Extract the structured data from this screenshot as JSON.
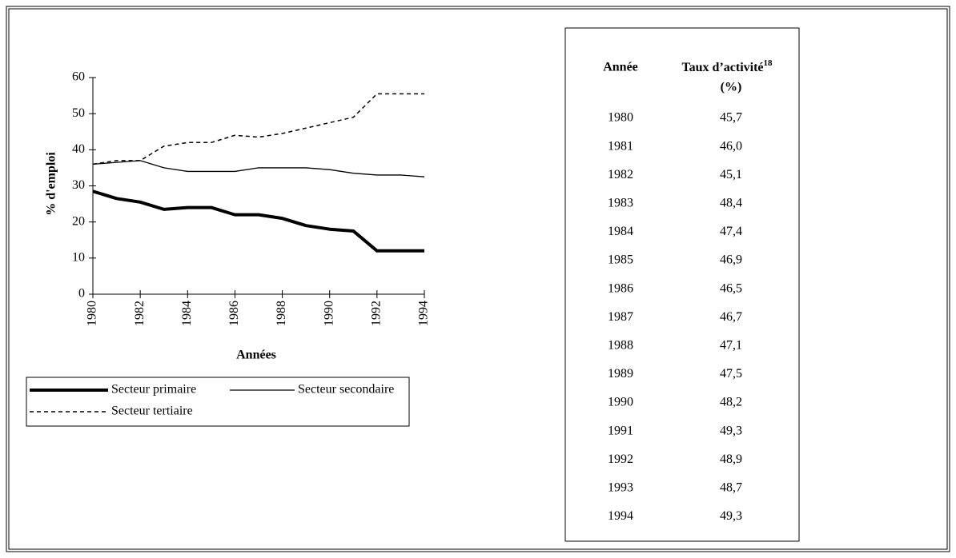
{
  "chart_data": {
    "type": "line",
    "y_label": "% d'emploi",
    "x_label": "Années",
    "x": [
      1980,
      1981,
      1982,
      1983,
      1984,
      1985,
      1986,
      1987,
      1988,
      1989,
      1990,
      1991,
      1992,
      1993,
      1994
    ],
    "xlim": [
      1980,
      1994
    ],
    "xticks": [
      1980,
      1982,
      1984,
      1986,
      1988,
      1990,
      1992,
      1994
    ],
    "ylim": [
      0,
      60
    ],
    "yticks": [
      0,
      10,
      20,
      30,
      40,
      50,
      60
    ],
    "series": [
      {
        "name": "Secteur primaire",
        "color": "#000000",
        "linewidth": 4,
        "linestyle": "solid",
        "values": [
          28.5,
          26.5,
          25.5,
          23.5,
          24,
          24,
          22,
          22,
          21,
          19,
          18,
          17.5,
          12,
          12,
          12
        ]
      },
      {
        "name": "Secteur secondaire",
        "color": "#000000",
        "linewidth": 1.3,
        "linestyle": "solid",
        "values": [
          36,
          36.5,
          37,
          35,
          34,
          34,
          34,
          35,
          35,
          35,
          34.5,
          33.5,
          33,
          33,
          32.5
        ]
      },
      {
        "name": "Secteur tertiaire",
        "color": "#000000",
        "linewidth": 1.5,
        "linestyle": "dashed",
        "values": [
          36,
          37,
          37,
          41,
          42,
          42,
          44,
          43.5,
          44.5,
          46,
          47.5,
          49,
          55.5,
          55.5,
          55.5
        ]
      }
    ]
  },
  "table": {
    "columns": [
      {
        "label": "Année"
      },
      {
        "label": "Taux d’activité",
        "note": "18",
        "unit": "(%)"
      }
    ],
    "rows": [
      [
        "1980",
        "45,7"
      ],
      [
        "1981",
        "46,0"
      ],
      [
        "1982",
        "45,1"
      ],
      [
        "1983",
        "48,4"
      ],
      [
        "1984",
        "47,4"
      ],
      [
        "1985",
        "46,9"
      ],
      [
        "1986",
        "46,5"
      ],
      [
        "1987",
        "46,7"
      ],
      [
        "1988",
        "47,1"
      ],
      [
        "1989",
        "47,5"
      ],
      [
        "1990",
        "48,2"
      ],
      [
        "1991",
        "49,3"
      ],
      [
        "1992",
        "48,9"
      ],
      [
        "1993",
        "48,7"
      ],
      [
        "1994",
        "49,3"
      ]
    ]
  }
}
